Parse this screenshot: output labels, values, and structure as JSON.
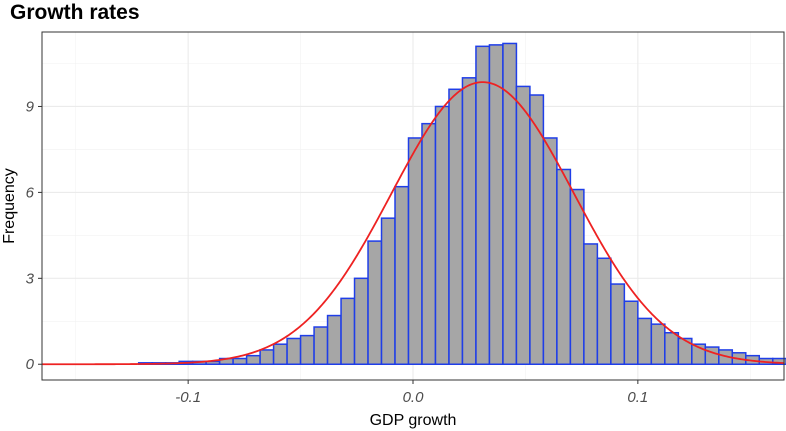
{
  "chart_data": {
    "type": "bar",
    "title": "Growth rates",
    "xlabel": "GDP growth",
    "ylabel": "Frequency",
    "xlim": [
      -0.165,
      0.165
    ],
    "ylim": [
      -0.55,
      11.6
    ],
    "x_ticks": [
      -0.1,
      0.0,
      0.1
    ],
    "x_tick_labels": [
      "-0.1",
      "0.0",
      "0.1"
    ],
    "y_ticks": [
      0,
      3,
      6,
      9
    ],
    "y_tick_labels": [
      "0",
      "3",
      "6",
      "9"
    ],
    "grid": true,
    "legend": "none",
    "series": [
      {
        "kind": "histogram",
        "bin_width": 0.006,
        "bin_starts": [
          -0.122,
          -0.116,
          -0.11,
          -0.104,
          -0.098,
          -0.092,
          -0.086,
          -0.08,
          -0.074,
          -0.068,
          -0.062,
          -0.056,
          -0.05,
          -0.044,
          -0.038,
          -0.032,
          -0.026,
          -0.02,
          -0.014,
          -0.008,
          -0.002,
          0.004,
          0.01,
          0.016,
          0.022,
          0.028,
          0.034,
          0.04,
          0.046,
          0.052,
          0.058,
          0.064,
          0.07,
          0.076,
          0.082,
          0.088,
          0.094,
          0.1,
          0.106,
          0.112,
          0.118,
          0.124,
          0.13,
          0.136,
          0.142,
          0.148,
          0.154,
          0.16
        ],
        "values": [
          0.05,
          0.05,
          0.05,
          0.1,
          0.1,
          0.1,
          0.2,
          0.2,
          0.3,
          0.5,
          0.7,
          0.9,
          1.0,
          1.3,
          1.7,
          2.3,
          3.0,
          4.3,
          5.1,
          6.2,
          7.9,
          8.4,
          9.0,
          9.6,
          10.0,
          11.1,
          11.15,
          11.2,
          9.7,
          9.4,
          7.9,
          6.8,
          6.1,
          4.2,
          3.7,
          2.8,
          2.2,
          1.6,
          1.4,
          1.1,
          0.9,
          0.7,
          0.6,
          0.5,
          0.4,
          0.3,
          0.2,
          0.2
        ],
        "fill": "#a6a6a6",
        "stroke": "#1f3ee8"
      },
      {
        "kind": "density",
        "mean": 0.031,
        "sd": 0.0405,
        "scale": 1.0,
        "color": "#ee2222"
      }
    ]
  }
}
